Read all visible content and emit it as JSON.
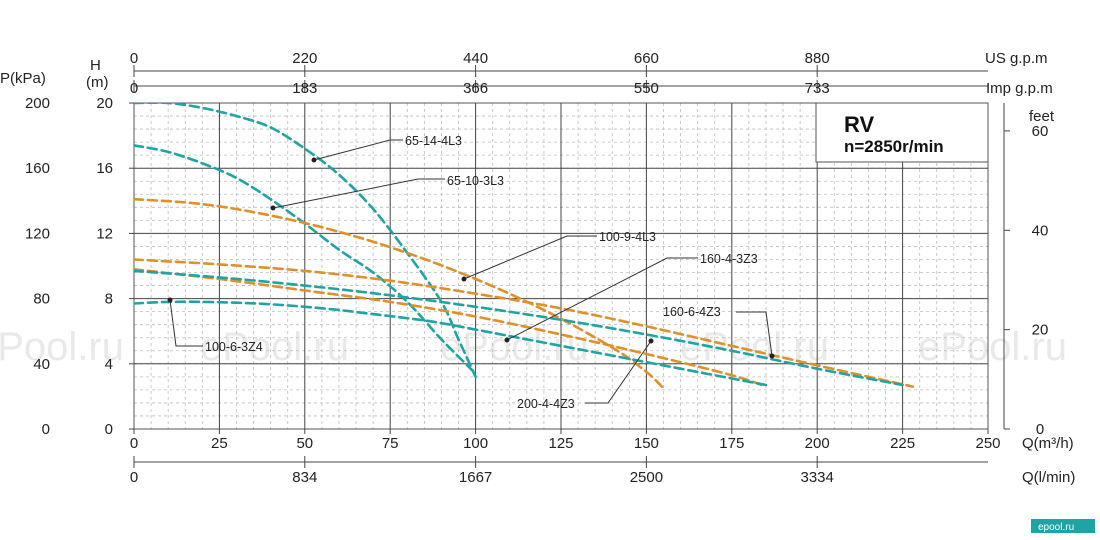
{
  "chart_data": {
    "type": "line",
    "title": "RV",
    "subtitle": "n=2850r/min",
    "xlabel": "Q(m³/h)",
    "xlim": [
      0,
      250
    ],
    "x_ticks": [
      "0",
      "25",
      "50",
      "75",
      "100",
      "125",
      "150",
      "175",
      "200",
      "225",
      "250"
    ],
    "ylabel_left": "H (m)",
    "ylim": [
      0,
      20
    ],
    "y_ticks": [
      "0",
      "4",
      "8",
      "12",
      "16",
      "20"
    ],
    "pressure_axis": {
      "label": "P(kPa)",
      "ticks": [
        "0",
        "40",
        "80",
        "120",
        "160",
        "200"
      ]
    },
    "feet_axis": {
      "label": "feet",
      "ticks": [
        "0",
        "20",
        "40",
        "60"
      ]
    },
    "us_gpm_axis": {
      "label": "US g.p.m",
      "ticks": [
        "0",
        "220",
        "440",
        "660",
        "880"
      ]
    },
    "imp_gpm_axis": {
      "label": "Imp g.p.m",
      "ticks": [
        "0",
        "183",
        "366",
        "550",
        "733"
      ]
    },
    "lmin_axis": {
      "label": "Q(l/min)",
      "ticks": [
        "0",
        "834",
        "1667",
        "2500",
        "3334"
      ]
    },
    "grid": true,
    "series": [
      {
        "name": "65-14-4L3",
        "color": "#1fa3a3",
        "x": [
          0,
          10,
          20,
          30,
          40,
          50,
          60,
          70,
          80,
          90,
          95,
          100
        ],
        "y": [
          20,
          20,
          19.7,
          19.2,
          18.5,
          17.2,
          15.6,
          13.5,
          10.8,
          7.8,
          5.5,
          3.2
        ]
      },
      {
        "name": "65-10-3L3",
        "color": "#1fa3a3",
        "x": [
          0,
          10,
          20,
          30,
          40,
          50,
          60,
          70,
          80,
          90,
          100
        ],
        "y": [
          17.4,
          17.0,
          16.3,
          15.4,
          14.1,
          12.6,
          11.0,
          9.6,
          7.8,
          5.5,
          3.4
        ]
      },
      {
        "name": "100-9-4L3",
        "color": "#e0902a",
        "x": [
          0,
          20,
          40,
          60,
          80,
          100,
          120,
          140,
          150,
          155
        ],
        "y": [
          14.1,
          13.8,
          13.1,
          12.1,
          10.8,
          9.2,
          7.3,
          5.0,
          3.5,
          2.5
        ]
      },
      {
        "name": "160-4-3Z3",
        "color": "#e0902a",
        "x": [
          0,
          25,
          50,
          75,
          100,
          125,
          150,
          175,
          185
        ],
        "y": [
          9.8,
          9.2,
          8.5,
          7.8,
          6.9,
          5.8,
          4.6,
          3.3,
          2.6
        ]
      },
      {
        "name": "160-6-4Z3",
        "color": "#e0902a",
        "x": [
          0,
          25,
          50,
          75,
          100,
          125,
          150,
          175,
          200,
          228
        ],
        "y": [
          10.4,
          10.1,
          9.7,
          9.1,
          8.3,
          7.4,
          6.3,
          5.1,
          3.9,
          2.6
        ]
      },
      {
        "name": "100-6-3Z4",
        "color": "#1fa3a3",
        "x": [
          0,
          10,
          20,
          30,
          40,
          50,
          60,
          70,
          80,
          90,
          100,
          110,
          120,
          130,
          140,
          150,
          160,
          175,
          185
        ],
        "y": [
          7.7,
          7.8,
          7.8,
          7.75,
          7.65,
          7.5,
          7.3,
          7.05,
          6.8,
          6.5,
          6.1,
          5.7,
          5.3,
          4.9,
          4.5,
          4.1,
          3.7,
          3.1,
          2.7
        ]
      },
      {
        "name": "200-4-4Z3",
        "color": "#1fa3a3",
        "x": [
          0,
          25,
          50,
          75,
          100,
          125,
          150,
          175,
          200,
          225
        ],
        "y": [
          9.7,
          9.3,
          8.8,
          8.2,
          7.5,
          6.7,
          5.8,
          4.8,
          3.7,
          2.7
        ]
      }
    ],
    "labels": [
      {
        "text": "65-14-4L3",
        "series": "65-14-4L3"
      },
      {
        "text": "65-10-3L3",
        "series": "65-10-3L3"
      },
      {
        "text": "100-9-4L3",
        "series": "100-9-4L3"
      },
      {
        "text": "160-4-3Z3",
        "series": "160-4-3Z3"
      },
      {
        "text": "160-6-4Z3",
        "series": "160-6-4Z3"
      },
      {
        "text": "100-6-3Z4",
        "series": "100-6-3Z4"
      },
      {
        "text": "200-4-4Z3",
        "series": "200-4-4Z3"
      }
    ]
  },
  "watermark": "ePool.ru",
  "logo": "epool.ru"
}
